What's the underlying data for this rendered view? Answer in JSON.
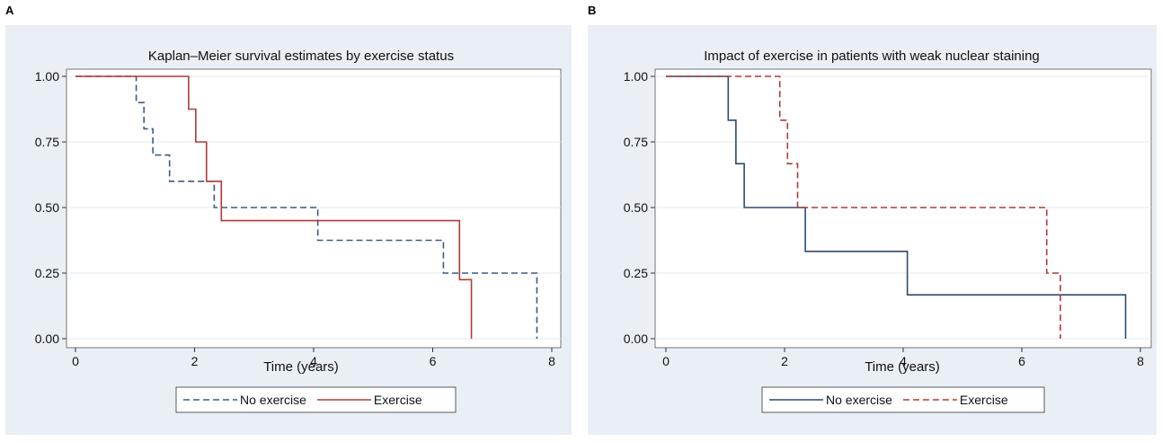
{
  "chart_data": [
    {
      "panel_label": "A",
      "type": "line",
      "step": true,
      "title": "Kaplan–Meier survival estimates by exercise status",
      "xlabel": "Time (years)",
      "ylabel": "",
      "xlim": [
        0,
        8
      ],
      "ylim": [
        0,
        1
      ],
      "x_ticks": [
        "0",
        "2",
        "4",
        "6",
        "8"
      ],
      "y_ticks": [
        "0.00",
        "0.25",
        "0.50",
        "0.75",
        "1.00"
      ],
      "grid": true,
      "legend_position": "bottom",
      "series": [
        {
          "name": "No exercise",
          "color": "#3e5a80",
          "dash": "dashed",
          "x": [
            0,
            1.02,
            1.15,
            1.3,
            1.58,
            2.33,
            4.07,
            6.18,
            7.75
          ],
          "y": [
            1.0,
            0.9,
            0.8,
            0.7,
            0.6,
            0.5,
            0.375,
            0.25,
            0.0
          ]
        },
        {
          "name": "Exercise",
          "color": "#b03a34",
          "dash": "solid",
          "x": [
            0,
            1.9,
            2.02,
            2.2,
            2.45,
            6.45,
            6.65
          ],
          "y": [
            1.0,
            0.875,
            0.75,
            0.6,
            0.45,
            0.225,
            0.0
          ]
        }
      ]
    },
    {
      "panel_label": "B",
      "type": "line",
      "step": true,
      "title": "Impact of exercise in patients with weak nuclear staining",
      "xlabel": "Time (years)",
      "ylabel": "",
      "xlim": [
        0,
        8
      ],
      "ylim": [
        0,
        1
      ],
      "x_ticks": [
        "0",
        "2",
        "4",
        "6",
        "8"
      ],
      "y_ticks": [
        "0.00",
        "0.25",
        "0.50",
        "0.75",
        "1.00"
      ],
      "grid": true,
      "legend_position": "bottom",
      "series": [
        {
          "name": "No exercise",
          "color": "#2f4a6c",
          "dash": "solid",
          "x": [
            0,
            1.05,
            1.18,
            1.32,
            2.35,
            4.07,
            7.75
          ],
          "y": [
            1.0,
            0.833,
            0.667,
            0.5,
            0.333,
            0.167,
            0.0
          ]
        },
        {
          "name": "Exercise",
          "color": "#b03a34",
          "dash": "dashed",
          "x": [
            0,
            1.92,
            2.05,
            2.22,
            6.42,
            6.65
          ],
          "y": [
            1.0,
            0.833,
            0.667,
            0.5,
            0.25,
            0.0
          ]
        }
      ]
    }
  ]
}
